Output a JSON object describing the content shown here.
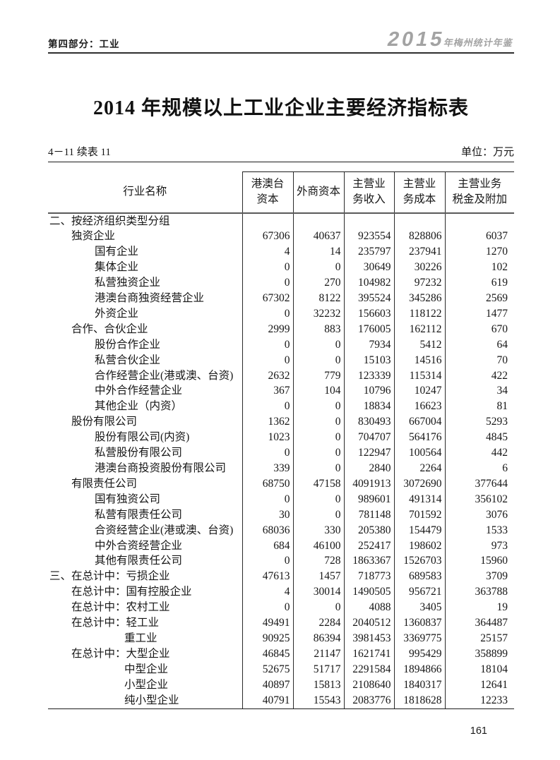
{
  "page": {
    "header_left": "第四部分：工业",
    "logo_year": "2015",
    "logo_suffix": "年梅州统计年鉴",
    "title": "2014 年规模以上工业企业主要经济指标表",
    "table_no": "4－11 续表 11",
    "unit": "单位：万元",
    "page_number": "161"
  },
  "table": {
    "headers": [
      "行业名称",
      "港澳台\n资本",
      "外商资本",
      "主营业\n务收入",
      "主营业\n务成本",
      "主营业务\n税金及附加"
    ],
    "rows": [
      {
        "indent": 0,
        "label": "二、按经济组织类型分组",
        "values": [
          "",
          "",
          "",
          "",
          ""
        ]
      },
      {
        "indent": 1,
        "label": "独资企业",
        "values": [
          "67306",
          "40637",
          "923554",
          "828806",
          "6037"
        ]
      },
      {
        "indent": 2,
        "label": "国有企业",
        "values": [
          "4",
          "14",
          "235797",
          "237941",
          "1270"
        ]
      },
      {
        "indent": 2,
        "label": "集体企业",
        "values": [
          "0",
          "0",
          "30649",
          "30226",
          "102"
        ]
      },
      {
        "indent": 2,
        "label": "私营独资企业",
        "values": [
          "0",
          "270",
          "104982",
          "97232",
          "619"
        ]
      },
      {
        "indent": 2,
        "label": "港澳台商独资经营企业",
        "values": [
          "67302",
          "8122",
          "395524",
          "345286",
          "2569"
        ]
      },
      {
        "indent": 2,
        "label": "外资企业",
        "values": [
          "0",
          "32232",
          "156603",
          "118122",
          "1477"
        ]
      },
      {
        "indent": 1,
        "label": "合作、合伙企业",
        "values": [
          "2999",
          "883",
          "176005",
          "162112",
          "670"
        ]
      },
      {
        "indent": 2,
        "label": "股份合作企业",
        "values": [
          "0",
          "0",
          "7934",
          "5412",
          "64"
        ]
      },
      {
        "indent": 2,
        "label": "私营合伙企业",
        "values": [
          "0",
          "0",
          "15103",
          "14516",
          "70"
        ]
      },
      {
        "indent": 2,
        "label": "合作经营企业(港或澳、台资)",
        "values": [
          "2632",
          "779",
          "123339",
          "115314",
          "422"
        ]
      },
      {
        "indent": 2,
        "label": "中外合作经营企业",
        "values": [
          "367",
          "104",
          "10796",
          "10247",
          "34"
        ]
      },
      {
        "indent": 2,
        "label": "其他企业（内资）",
        "values": [
          "0",
          "0",
          "18834",
          "16623",
          "81"
        ]
      },
      {
        "indent": 1,
        "label": "股份有限公司",
        "values": [
          "1362",
          "0",
          "830493",
          "667004",
          "5293"
        ]
      },
      {
        "indent": 2,
        "label": "股份有限公司(内资)",
        "values": [
          "1023",
          "0",
          "704707",
          "564176",
          "4845"
        ]
      },
      {
        "indent": 2,
        "label": "私营股份有限公司",
        "values": [
          "0",
          "0",
          "122947",
          "100564",
          "442"
        ]
      },
      {
        "indent": 2,
        "label": "港澳台商投资股份有限公司",
        "values": [
          "339",
          "0",
          "2840",
          "2264",
          "6"
        ]
      },
      {
        "indent": 1,
        "label": "有限责任公司",
        "values": [
          "68750",
          "47158",
          "4091913",
          "3072690",
          "377644"
        ]
      },
      {
        "indent": 2,
        "label": "国有独资公司",
        "values": [
          "0",
          "0",
          "989601",
          "491314",
          "356102"
        ]
      },
      {
        "indent": 2,
        "label": "私营有限责任公司",
        "values": [
          "30",
          "0",
          "781148",
          "701592",
          "3076"
        ]
      },
      {
        "indent": 2,
        "label": "合资经营企业(港或澳、台资)",
        "values": [
          "68036",
          "330",
          "205380",
          "154479",
          "1533"
        ]
      },
      {
        "indent": 2,
        "label": "中外合资经营企业",
        "values": [
          "684",
          "46100",
          "252417",
          "198602",
          "973"
        ]
      },
      {
        "indent": 2,
        "label": "其他有限责任公司",
        "values": [
          "0",
          "728",
          "1863367",
          "1526703",
          "15960"
        ]
      },
      {
        "indent": 0,
        "label": "三、在总计中：亏损企业",
        "values": [
          "47613",
          "1457",
          "718773",
          "689583",
          "3709"
        ]
      },
      {
        "indent": 1,
        "label": "在总计中：国有控股企业",
        "values": [
          "4",
          "30014",
          "1490505",
          "956721",
          "363788"
        ]
      },
      {
        "indent": 1,
        "label": "在总计中：农村工业",
        "values": [
          "0",
          "0",
          "4088",
          "3405",
          "19"
        ]
      },
      {
        "indent": 1,
        "label": "在总计中：轻工业",
        "values": [
          "49491",
          "2284",
          "2040512",
          "1360837",
          "364487"
        ]
      },
      {
        "indent": 3,
        "label": "重工业",
        "values": [
          "90925",
          "86394",
          "3981453",
          "3369775",
          "25157"
        ]
      },
      {
        "indent": 1,
        "label": "在总计中：大型企业",
        "values": [
          "46845",
          "21147",
          "1621741",
          "995429",
          "358899"
        ]
      },
      {
        "indent": 3,
        "label": "中型企业",
        "values": [
          "52675",
          "51717",
          "2291584",
          "1894866",
          "18104"
        ]
      },
      {
        "indent": 3,
        "label": "小型企业",
        "values": [
          "40897",
          "15813",
          "2108640",
          "1840317",
          "12641"
        ]
      },
      {
        "indent": 3,
        "label": "纯小型企业",
        "values": [
          "40791",
          "15543",
          "2083776",
          "1818628",
          "12233"
        ]
      }
    ]
  }
}
